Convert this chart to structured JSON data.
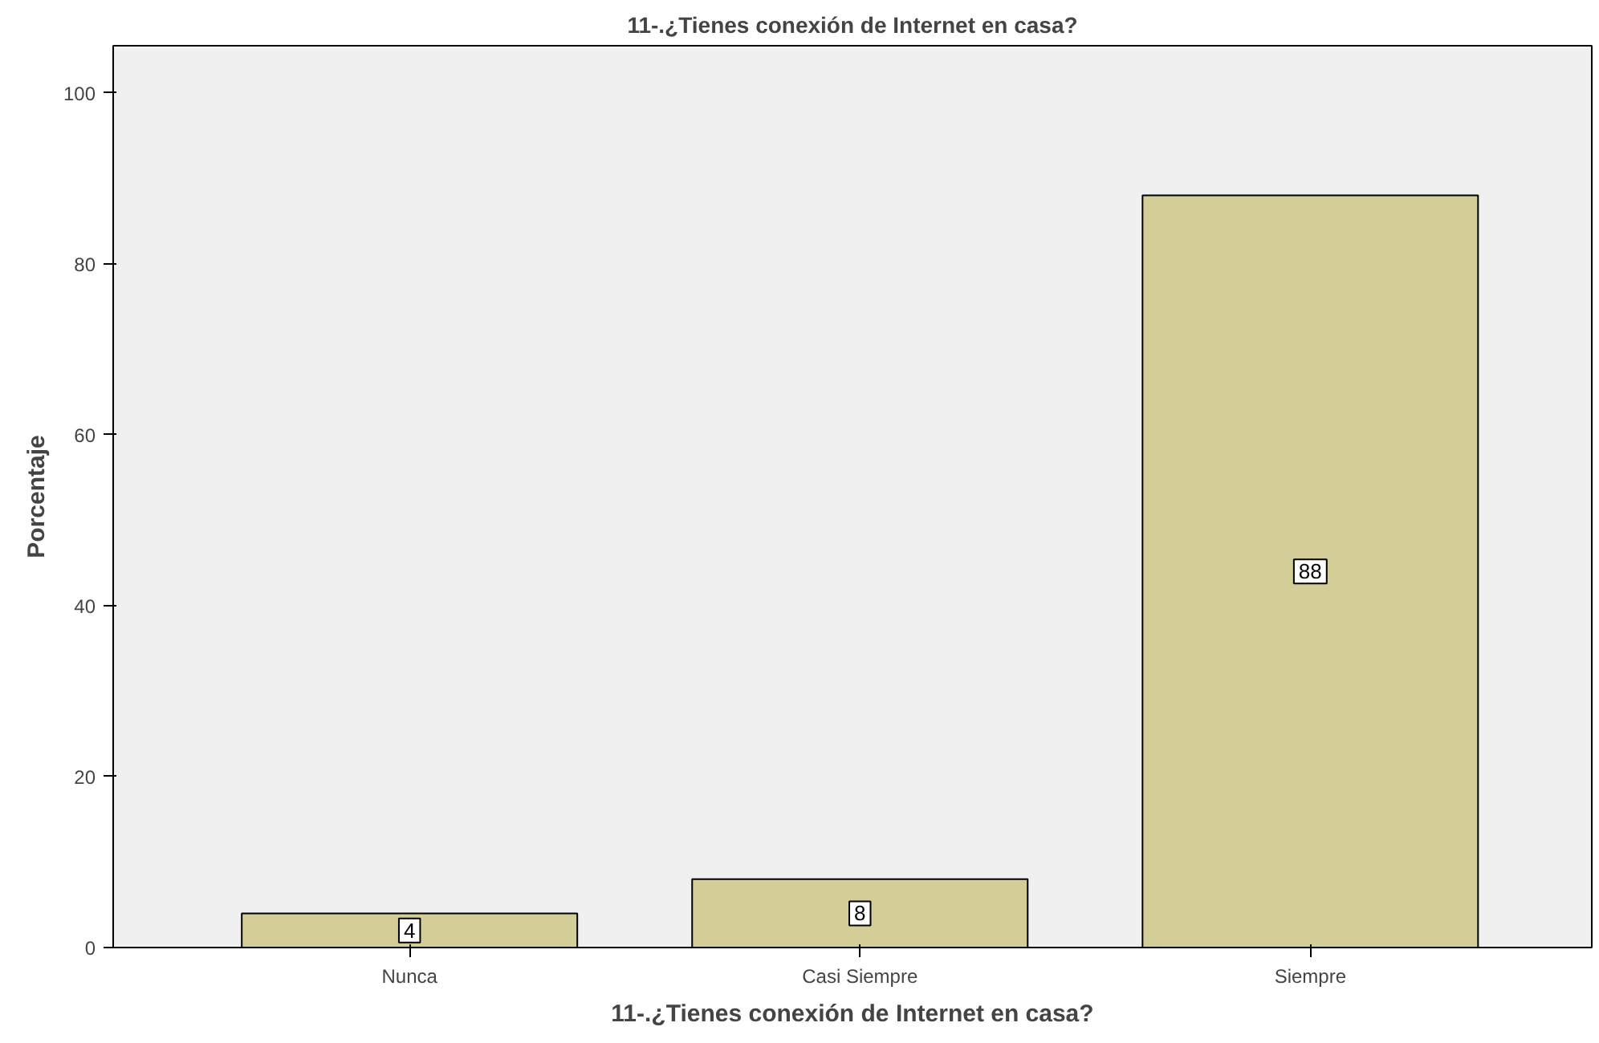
{
  "chart_data": {
    "type": "bar",
    "title": "11-.¿Tienes conexión de Internet en casa?",
    "xlabel": "11-.¿Tienes conexión de Internet en casa?",
    "ylabel": "Porcentaje",
    "categories": [
      "Nunca",
      "Casi Siempre",
      "Siempre"
    ],
    "values": [
      4,
      8,
      88
    ],
    "color": "#d3ce97",
    "ylim": [
      0,
      105.5
    ],
    "yticks": [
      0,
      20,
      40,
      60,
      80,
      100
    ],
    "data_labels": true,
    "grid": false
  }
}
